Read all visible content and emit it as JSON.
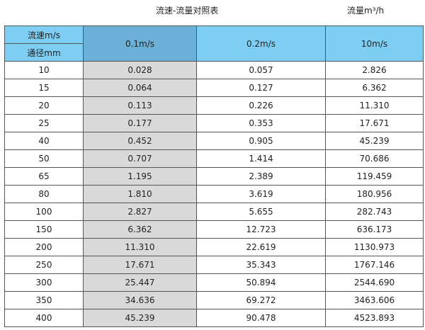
{
  "title": "流速-流量对照表",
  "unit_label": "流量m³/h",
  "colors": {
    "header": "#7ecef4",
    "header_selected": "#6bb0d6",
    "highlight_column": "#d9d9d9"
  },
  "header": {
    "velocity_label": "流速m/s",
    "diameter_label": "通径mm",
    "columns": [
      "0.1m/s",
      "0.2m/s",
      "10m/s"
    ]
  },
  "rows": [
    [
      "10",
      "0.028",
      "0.057",
      "2.826"
    ],
    [
      "15",
      "0.064",
      "0.127",
      "6.362"
    ],
    [
      "20",
      "0.113",
      "0.226",
      "11.310"
    ],
    [
      "25",
      "0.177",
      "0.353",
      "17.671"
    ],
    [
      "40",
      "0.452",
      "0.905",
      "45.239"
    ],
    [
      "50",
      "0.707",
      "1.414",
      "70.686"
    ],
    [
      "65",
      "1.195",
      "2.389",
      "119.459"
    ],
    [
      "80",
      "1.810",
      "3.619",
      "180.956"
    ],
    [
      "100",
      "2.827",
      "5.655",
      "282.743"
    ],
    [
      "150",
      "6.362",
      "12.723",
      "636.173"
    ],
    [
      "200",
      "11.310",
      "22.619",
      "1130.973"
    ],
    [
      "250",
      "17.671",
      "35.343",
      "1767.146"
    ],
    [
      "300",
      "25.447",
      "50.894",
      "2544.690"
    ],
    [
      "350",
      "34.636",
      "69.272",
      "3463.606"
    ],
    [
      "400",
      "45.239",
      "90.478",
      "4523.893"
    ]
  ]
}
